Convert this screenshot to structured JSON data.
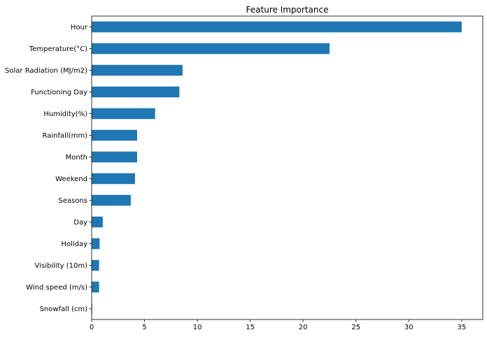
{
  "chart_data": {
    "type": "bar",
    "orientation": "horizontal",
    "title": "Feature Importance",
    "xlabel": "",
    "ylabel": "",
    "grid": false,
    "xlim": [
      0,
      37
    ],
    "xticks": [
      0,
      5,
      10,
      15,
      20,
      25,
      30,
      35
    ],
    "categories": [
      "Hour",
      "Temperature(°C)",
      "Solar Radiation (MJ/m2)",
      "Functioning Day",
      "Humidity(%)",
      "Rainfall(mm)",
      "Month",
      "Weekend",
      "Seasons",
      "Day",
      "Holiday",
      "Visibility (10m)",
      "Wind speed (m/s)",
      "Snowfall (cm)"
    ],
    "values": [
      35.0,
      22.5,
      8.6,
      8.3,
      6.0,
      4.3,
      4.3,
      4.1,
      3.7,
      1.05,
      0.75,
      0.7,
      0.7,
      0.05
    ],
    "bar_color": "#1f77b4"
  }
}
